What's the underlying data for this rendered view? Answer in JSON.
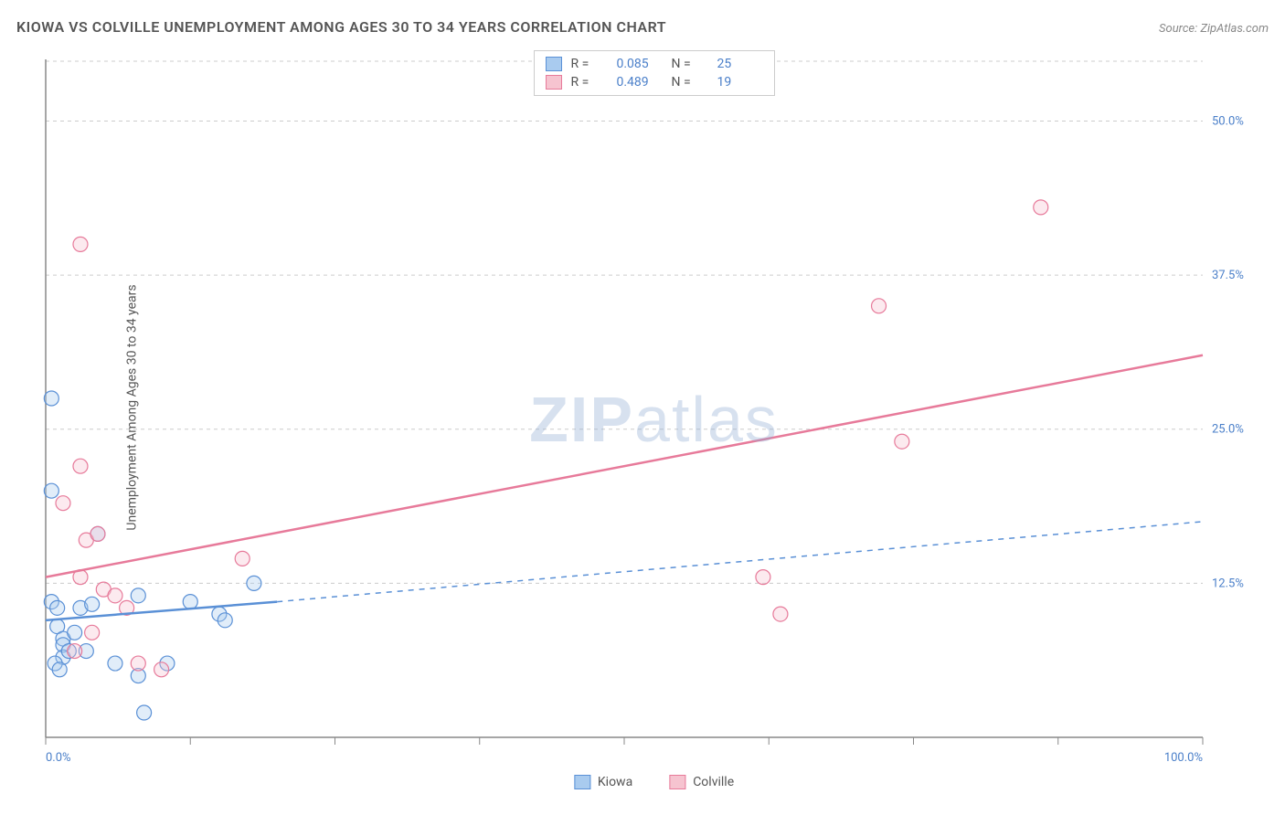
{
  "header": {
    "title": "KIOWA VS COLVILLE UNEMPLOYMENT AMONG AGES 30 TO 34 YEARS CORRELATION CHART",
    "source_label": "Source: ",
    "source_name": "ZipAtlas.com"
  },
  "ylabel": "Unemployment Among Ages 30 to 34 years",
  "watermark": {
    "part1": "ZIP",
    "part2": "atlas"
  },
  "chart": {
    "type": "scatter",
    "xlim": [
      0,
      100
    ],
    "ylim": [
      0,
      55
    ],
    "background_color": "#ffffff",
    "grid_color": "#cccccc",
    "grid_dash": "4 4",
    "axis_color": "#888888",
    "tick_label_color": "#4a7fc9",
    "tick_fontsize": 13,
    "x_ticks": [
      0,
      12.5,
      25,
      37.5,
      50,
      62.5,
      75,
      87.5,
      100
    ],
    "x_tick_labels": {
      "0": "0.0%",
      "100": "100.0%"
    },
    "y_ticks": [
      12.5,
      25,
      37.5,
      50
    ],
    "y_tick_labels": {
      "12.5": "12.5%",
      "25": "25.0%",
      "37.5": "37.5%",
      "50": "50.0%"
    },
    "marker_radius": 8,
    "marker_stroke_width": 1.2,
    "marker_fill_opacity": 0.35,
    "trend_line_width": 2.5,
    "series": [
      {
        "name": "Kiowa",
        "color_fill": "#a9cbef",
        "color_stroke": "#5a90d6",
        "line_color": "#5a90d6",
        "r": 0.085,
        "n": 25,
        "points": [
          [
            0.5,
            27.5
          ],
          [
            0.5,
            20.0
          ],
          [
            0.5,
            11.0
          ],
          [
            1.0,
            10.5
          ],
          [
            1.0,
            9.0
          ],
          [
            1.5,
            8.0
          ],
          [
            1.5,
            7.5
          ],
          [
            1.5,
            6.5
          ],
          [
            0.8,
            6.0
          ],
          [
            1.2,
            5.5
          ],
          [
            2.0,
            7.0
          ],
          [
            2.5,
            8.5
          ],
          [
            3.0,
            10.5
          ],
          [
            3.5,
            7.0
          ],
          [
            4.0,
            10.8
          ],
          [
            4.5,
            16.5
          ],
          [
            6.0,
            6.0
          ],
          [
            8.0,
            5.0
          ],
          [
            8.5,
            2.0
          ],
          [
            10.5,
            6.0
          ],
          [
            12.5,
            11.0
          ],
          [
            15.0,
            10.0
          ],
          [
            15.5,
            9.5
          ],
          [
            18.0,
            12.5
          ],
          [
            8.0,
            11.5
          ]
        ],
        "trend": {
          "x1": 0,
          "y1": 9.5,
          "x2": 20,
          "y2": 11.0,
          "dashed_from_x": 20,
          "dashed_to_x": 100,
          "dashed_y2": 17.5
        }
      },
      {
        "name": "Colville",
        "color_fill": "#f6c4d0",
        "color_stroke": "#e77a9a",
        "line_color": "#e77a9a",
        "r": 0.489,
        "n": 19,
        "points": [
          [
            3.0,
            40.0
          ],
          [
            1.5,
            19.0
          ],
          [
            3.0,
            22.0
          ],
          [
            3.5,
            16.0
          ],
          [
            4.5,
            16.5
          ],
          [
            5.0,
            12.0
          ],
          [
            3.0,
            13.0
          ],
          [
            6.0,
            11.5
          ],
          [
            7.0,
            10.5
          ],
          [
            8.0,
            6.0
          ],
          [
            10.0,
            5.5
          ],
          [
            17.0,
            14.5
          ],
          [
            62.0,
            13.0
          ],
          [
            63.5,
            10.0
          ],
          [
            74.0,
            24.0
          ],
          [
            72.0,
            35.0
          ],
          [
            86.0,
            43.0
          ],
          [
            4.0,
            8.5
          ],
          [
            2.5,
            7.0
          ]
        ],
        "trend": {
          "x1": 0,
          "y1": 13.0,
          "x2": 100,
          "y2": 31.0
        }
      }
    ]
  },
  "legend_top": {
    "r_label": "R =",
    "n_label": "N ="
  },
  "legend_bottom": {
    "items": [
      "Kiowa",
      "Colville"
    ]
  }
}
